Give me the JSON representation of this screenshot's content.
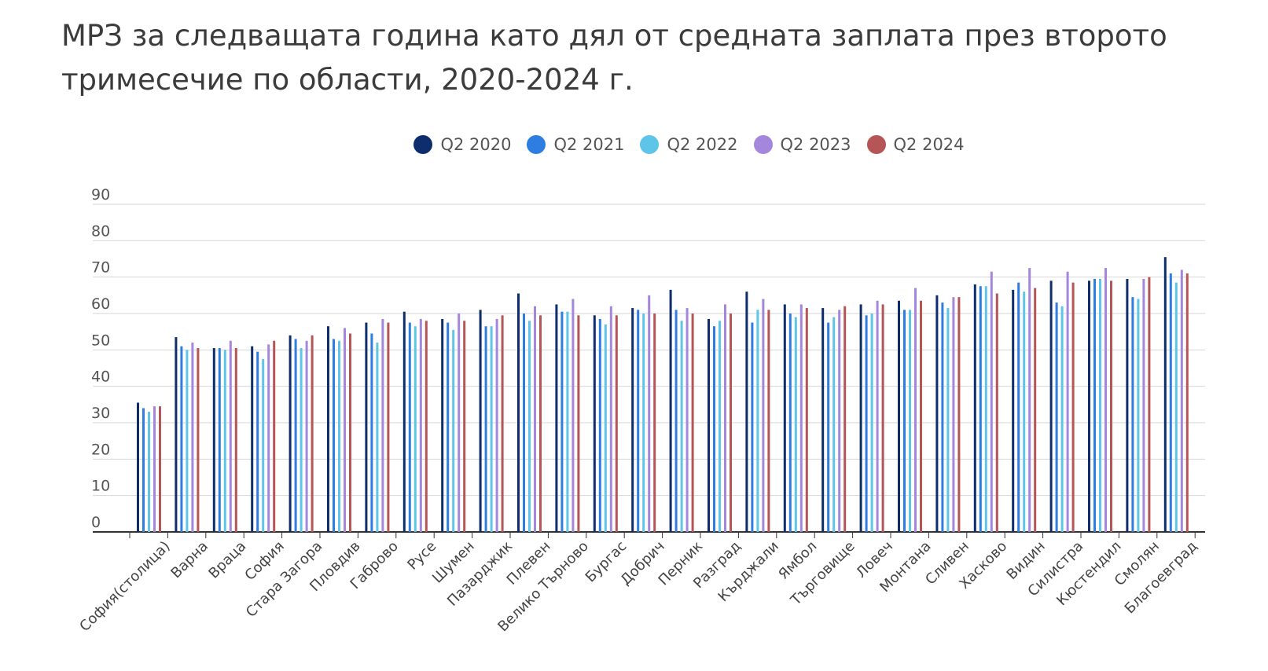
{
  "chart_data": {
    "type": "bar",
    "title": "МРЗ за следващата година като дял от средната заплата през второто тримесечие по области, 2020-2024 г.",
    "xlabel": "",
    "ylabel": "",
    "ylim": [
      0,
      90
    ],
    "yticks": [
      0,
      10,
      20,
      30,
      40,
      50,
      60,
      70,
      80,
      90
    ],
    "grid": true,
    "legend_position": "top-center",
    "categories": [
      "София(столица)",
      "Варна",
      "Враца",
      "София",
      "Стара Загора",
      "Пловдив",
      "Габрово",
      "Русе",
      "Шумен",
      "Пазарджик",
      "Плевен",
      "Велико Търново",
      "Бургас",
      "Добрич",
      "Перник",
      "Разград",
      "Кърджали",
      "Ямбол",
      "Търговище",
      "Ловеч",
      "Монтана",
      "Сливен",
      "Хасково",
      "Видин",
      "Силистра",
      "Кюстендил",
      "Смолян",
      "Благоевград"
    ],
    "series": [
      {
        "name": "Q2 2020",
        "color": "#0d2d6c",
        "values": [
          35.5,
          53.5,
          50.5,
          51,
          54,
          56.5,
          57.5,
          60.5,
          58.5,
          61,
          65.5,
          62.5,
          59.5,
          61.5,
          66.5,
          58.5,
          66,
          62.5,
          61.5,
          62.5,
          63.5,
          65,
          68,
          66.5,
          69,
          69,
          69.5,
          75.5
        ]
      },
      {
        "name": "Q2 2021",
        "color": "#2e7de1",
        "values": [
          34,
          51,
          50.5,
          49.5,
          53,
          53,
          54.5,
          57.5,
          57.5,
          56.5,
          60,
          60.5,
          58.5,
          61,
          61,
          56.5,
          57.5,
          60,
          57.5,
          59.5,
          61,
          63,
          67.5,
          68.5,
          63,
          69.5,
          64.5,
          71
        ]
      },
      {
        "name": "Q2 2022",
        "color": "#5ec4e8",
        "values": [
          33,
          50,
          50,
          47.5,
          50.5,
          52.5,
          52,
          56.5,
          55.5,
          56.5,
          58,
          60.5,
          57,
          60,
          58,
          58,
          61,
          59,
          59,
          60,
          61,
          61.5,
          67.5,
          66,
          62,
          69.5,
          64,
          68.5
        ]
      },
      {
        "name": "Q2 2023",
        "color": "#a487dc",
        "values": [
          34.5,
          52,
          52.5,
          51.5,
          52.5,
          56,
          58.5,
          58.5,
          60,
          58.5,
          62,
          64,
          62,
          65,
          61.5,
          62.5,
          64,
          62.5,
          61,
          63.5,
          67,
          64.5,
          71.5,
          72.5,
          71.5,
          72.5,
          69.5,
          72
        ]
      },
      {
        "name": "Q2 2024",
        "color": "#b65555",
        "values": [
          34.5,
          50.5,
          50.5,
          52.5,
          54,
          54.5,
          57.5,
          58,
          58,
          59.5,
          59.5,
          59.5,
          59.5,
          60,
          60,
          60,
          61,
          61.5,
          62,
          62.5,
          63.5,
          64.5,
          65.5,
          67,
          68.5,
          69,
          70,
          71
        ]
      }
    ]
  }
}
